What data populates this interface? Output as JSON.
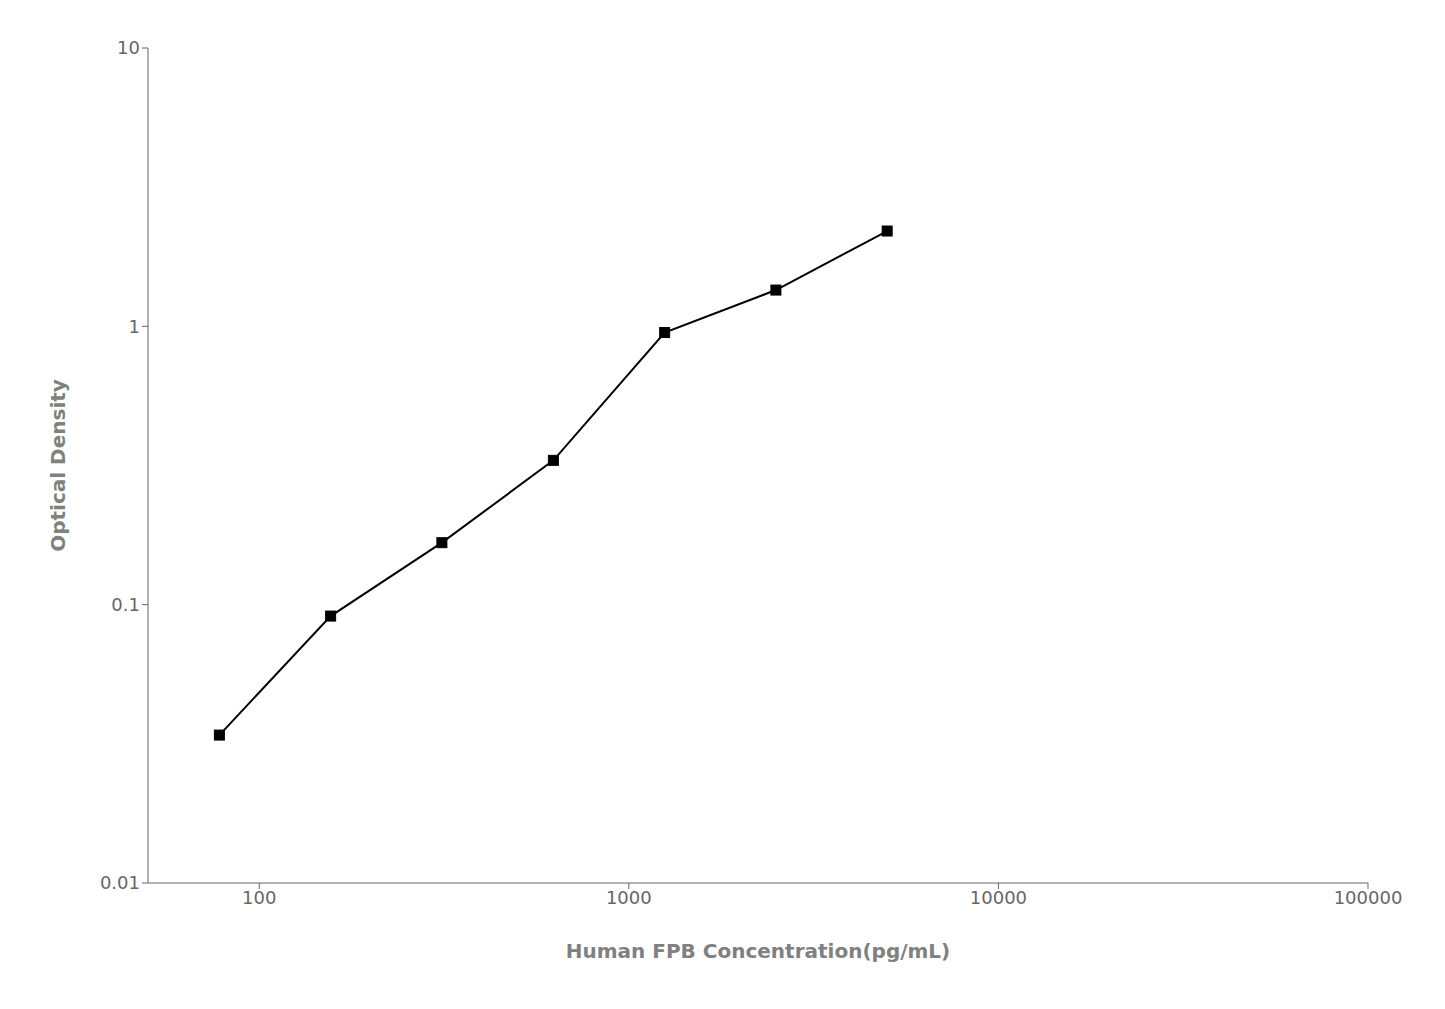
{
  "chart_data": {
    "type": "line",
    "x": [
      78,
      156,
      312,
      625,
      1250,
      2500,
      5000
    ],
    "values": [
      0.034,
      0.091,
      0.167,
      0.33,
      0.95,
      1.35,
      2.2
    ],
    "xlabel": "Human FPB Concentration(pg/mL)",
    "ylabel": "Optical Density",
    "xlim": [
      50,
      100000
    ],
    "ylim": [
      0.01,
      10
    ],
    "xticks": [
      100,
      1000,
      10000,
      100000
    ],
    "yticks": [
      0.01,
      0.1,
      1,
      10
    ],
    "log": true,
    "color": "#000000",
    "marker": "square",
    "line_style": "solid",
    "grid": false
  }
}
